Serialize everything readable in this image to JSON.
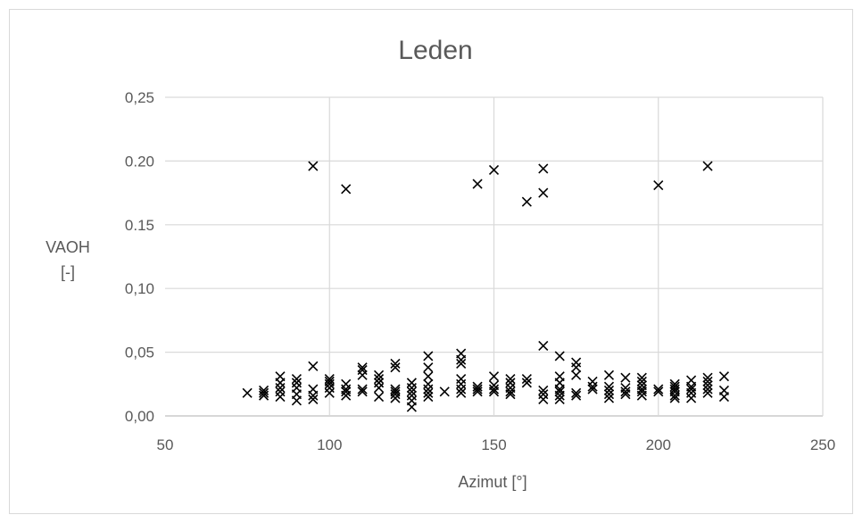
{
  "chart_data": {
    "type": "scatter",
    "title": "Leden",
    "xlabel": "Azimut [°]",
    "ylabel_lines": [
      "VAOH",
      "[-]"
    ],
    "xlim": [
      50,
      250
    ],
    "ylim": [
      0,
      0.25
    ],
    "x_ticks": [
      "50",
      "100",
      "150",
      "200",
      "250"
    ],
    "y_ticks": [
      "0,00",
      "0,05",
      "0,10",
      "0.15",
      "0.20",
      "0,25"
    ],
    "grid": true,
    "marker": "x",
    "marker_color": "#000000",
    "series": [
      {
        "points": [
          [
            75,
            0.018
          ],
          [
            80,
            0.016
          ],
          [
            80,
            0.018
          ],
          [
            80,
            0.02
          ],
          [
            85,
            0.015
          ],
          [
            85,
            0.019
          ],
          [
            85,
            0.022
          ],
          [
            85,
            0.026
          ],
          [
            85,
            0.031
          ],
          [
            90,
            0.012
          ],
          [
            90,
            0.017
          ],
          [
            90,
            0.022
          ],
          [
            90,
            0.026
          ],
          [
            90,
            0.029
          ],
          [
            95,
            0.013
          ],
          [
            95,
            0.016
          ],
          [
            95,
            0.021
          ],
          [
            95,
            0.039
          ],
          [
            95,
            0.196
          ],
          [
            100,
            0.018
          ],
          [
            100,
            0.022
          ],
          [
            100,
            0.025
          ],
          [
            100,
            0.027
          ],
          [
            100,
            0.029
          ],
          [
            105,
            0.016
          ],
          [
            105,
            0.019
          ],
          [
            105,
            0.021
          ],
          [
            105,
            0.025
          ],
          [
            105,
            0.178
          ],
          [
            110,
            0.019
          ],
          [
            110,
            0.021
          ],
          [
            110,
            0.032
          ],
          [
            110,
            0.036
          ],
          [
            110,
            0.038
          ],
          [
            115,
            0.015
          ],
          [
            115,
            0.022
          ],
          [
            115,
            0.026
          ],
          [
            115,
            0.029
          ],
          [
            115,
            0.032
          ],
          [
            120,
            0.014
          ],
          [
            120,
            0.017
          ],
          [
            120,
            0.019
          ],
          [
            120,
            0.021
          ],
          [
            120,
            0.038
          ],
          [
            120,
            0.041
          ],
          [
            125,
            0.007
          ],
          [
            125,
            0.012
          ],
          [
            125,
            0.016
          ],
          [
            125,
            0.019
          ],
          [
            125,
            0.022
          ],
          [
            125,
            0.026
          ],
          [
            130,
            0.015
          ],
          [
            130,
            0.018
          ],
          [
            130,
            0.021
          ],
          [
            130,
            0.025
          ],
          [
            130,
            0.031
          ],
          [
            130,
            0.038
          ],
          [
            130,
            0.047
          ],
          [
            135,
            0.019
          ],
          [
            140,
            0.018
          ],
          [
            140,
            0.021
          ],
          [
            140,
            0.025
          ],
          [
            140,
            0.029
          ],
          [
            140,
            0.041
          ],
          [
            140,
            0.044
          ],
          [
            140,
            0.049
          ],
          [
            145,
            0.019
          ],
          [
            145,
            0.021
          ],
          [
            145,
            0.023
          ],
          [
            145,
            0.182
          ],
          [
            150,
            0.019
          ],
          [
            150,
            0.021
          ],
          [
            150,
            0.024
          ],
          [
            150,
            0.031
          ],
          [
            150,
            0.193
          ],
          [
            155,
            0.017
          ],
          [
            155,
            0.019
          ],
          [
            155,
            0.022
          ],
          [
            155,
            0.026
          ],
          [
            155,
            0.029
          ],
          [
            160,
            0.026
          ],
          [
            160,
            0.029
          ],
          [
            160,
            0.168
          ],
          [
            165,
            0.013
          ],
          [
            165,
            0.017
          ],
          [
            165,
            0.02
          ],
          [
            165,
            0.055
          ],
          [
            165,
            0.175
          ],
          [
            165,
            0.194
          ],
          [
            170,
            0.013
          ],
          [
            170,
            0.016
          ],
          [
            170,
            0.019
          ],
          [
            170,
            0.021
          ],
          [
            170,
            0.026
          ],
          [
            170,
            0.031
          ],
          [
            170,
            0.047
          ],
          [
            175,
            0.016
          ],
          [
            175,
            0.018
          ],
          [
            175,
            0.032
          ],
          [
            175,
            0.038
          ],
          [
            175,
            0.042
          ],
          [
            180,
            0.021
          ],
          [
            180,
            0.023
          ],
          [
            180,
            0.027
          ],
          [
            185,
            0.014
          ],
          [
            185,
            0.017
          ],
          [
            185,
            0.02
          ],
          [
            185,
            0.023
          ],
          [
            185,
            0.032
          ],
          [
            190,
            0.017
          ],
          [
            190,
            0.019
          ],
          [
            190,
            0.022
          ],
          [
            190,
            0.03
          ],
          [
            195,
            0.016
          ],
          [
            195,
            0.019
          ],
          [
            195,
            0.021
          ],
          [
            195,
            0.024
          ],
          [
            195,
            0.027
          ],
          [
            195,
            0.03
          ],
          [
            200,
            0.019
          ],
          [
            200,
            0.021
          ],
          [
            200,
            0.181
          ],
          [
            205,
            0.014
          ],
          [
            205,
            0.016
          ],
          [
            205,
            0.019
          ],
          [
            205,
            0.021
          ],
          [
            205,
            0.023
          ],
          [
            205,
            0.025
          ],
          [
            210,
            0.014
          ],
          [
            210,
            0.018
          ],
          [
            210,
            0.021
          ],
          [
            210,
            0.023
          ],
          [
            210,
            0.028
          ],
          [
            215,
            0.018
          ],
          [
            215,
            0.021
          ],
          [
            215,
            0.024
          ],
          [
            215,
            0.027
          ],
          [
            215,
            0.03
          ],
          [
            215,
            0.196
          ],
          [
            220,
            0.015
          ],
          [
            220,
            0.02
          ],
          [
            220,
            0.031
          ]
        ]
      }
    ]
  }
}
